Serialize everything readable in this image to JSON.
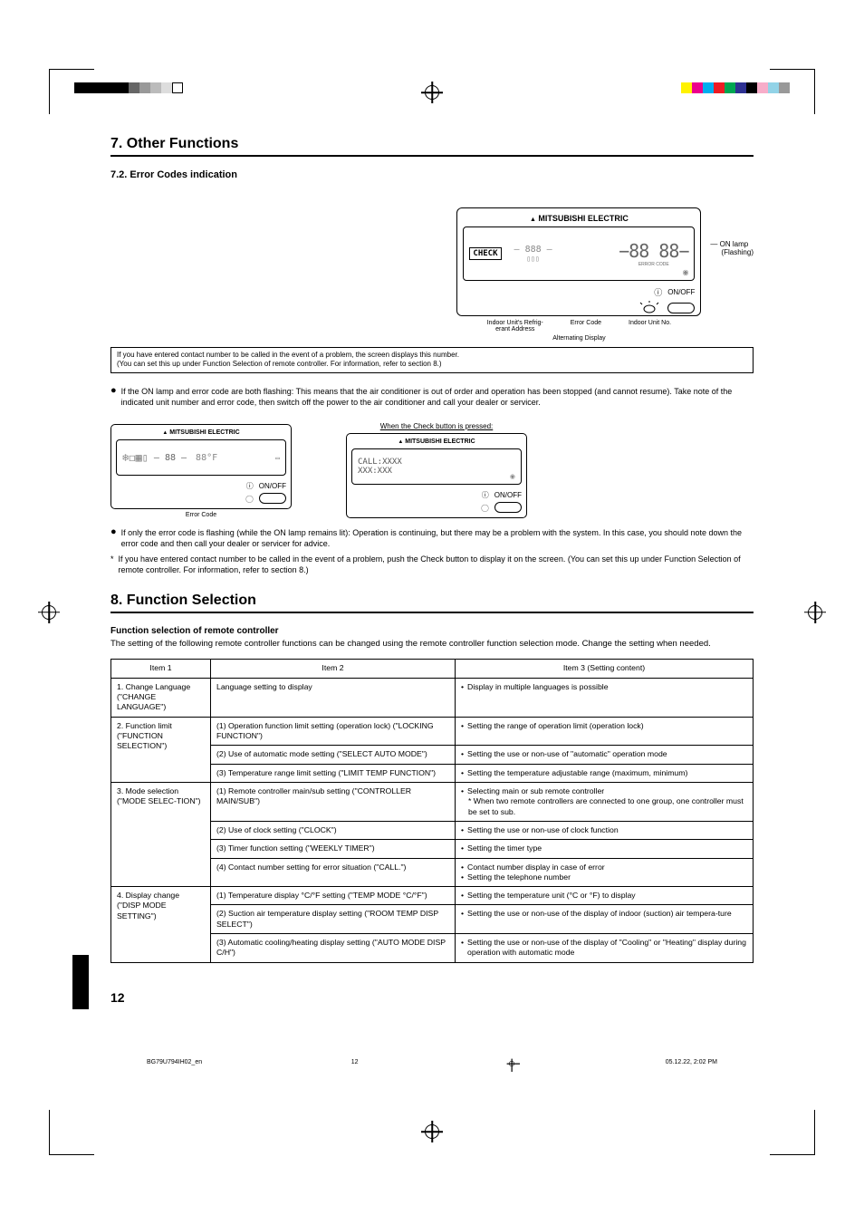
{
  "sections": {
    "s7_title": "7. Other Functions",
    "s7_2": "7.2.  Error Codes indication",
    "s8_title": "8. Function Selection"
  },
  "brand": "MITSUBISHI ELECTRIC",
  "lcd": {
    "check": "CHECK",
    "seg_big": "88 88",
    "seg_small": "888",
    "error_code_label": "ERROR CODE",
    "onoff": "ON/OFF",
    "call": "CALL:XXXX",
    "call2": "XXX:XXX",
    "temp_f": "88°F",
    "temp_set": "88"
  },
  "labels": {
    "refrig": "Indoor Unit's Refrig-\nerant Address",
    "error_code": "Error Code",
    "unit_no": "Indoor Unit No.",
    "alt": "Alternating Display",
    "on_lamp": "ON lamp",
    "flashing": "(Flashing)",
    "when_check": "When the Check button is pressed:"
  },
  "note_box": {
    "l1": "If you have entered contact number to be called in the event of a problem, the screen displays this number.",
    "l2": "(You can set this up under Function Selection of remote controller. For information, refer to section 8.)"
  },
  "bullets": {
    "b1": "If the ON lamp and error code are both flashing: This means that the air conditioner is out of order and operation has been stopped (and cannot resume). Take note of the indicated unit number and error code, then switch off the power to the air conditioner and call your dealer or servicer.",
    "b2": "If only the error code is flashing (while the ON lamp remains lit): Operation is continuing, but there may be a problem with the system. In this case, you should note down the error code and then call your dealer or servicer for advice.",
    "b3": "If you have entered contact number to be called in the event of a problem, push the Check button to display it on the screen. (You can set this up under Function Selection of remote controller. For information, refer to section 8.)"
  },
  "func_intro": {
    "bold": "Function selection of remote controller",
    "text": "The setting of the following remote controller functions can be changed using the remote controller function selection mode. Change the setting when needed."
  },
  "table": {
    "headers": {
      "h1": "Item 1",
      "h2": "Item 2",
      "h3": "Item 3 (Setting content)"
    },
    "r1": {
      "c1": "1. Change Language (\"CHANGE LANGUAGE\")",
      "c2": "Language setting to display",
      "c3": "Display in multiple languages is possible"
    },
    "r2": {
      "c1": "2. Function limit (\"FUNCTION SELECTION\")",
      "c2a": "(1) Operation function limit setting (operation lock) (\"LOCKING FUNCTION\")",
      "c3a": "Setting the range of operation limit (operation lock)",
      "c2b": "(2) Use of automatic mode setting (\"SELECT AUTO MODE\")",
      "c3b": "Setting the use or non-use of \"automatic\" operation mode",
      "c2c": "(3) Temperature range limit setting (\"LIMIT TEMP FUNCTION\")",
      "c3c": "Setting the temperature adjustable range (maximum, minimum)"
    },
    "r3": {
      "c1": "3. Mode selection (\"MODE SELEC-TION\")",
      "c2a": "(1) Remote controller main/sub setting (\"CONTROLLER MAIN/SUB\")",
      "c3a1": "Selecting main or sub remote controller",
      "c3a2": "* When two remote controllers are connected to one group, one controller must be set to sub.",
      "c2b": "(2) Use of clock setting (\"CLOCK\")",
      "c3b": "Setting the use or non-use of clock function",
      "c2c": "(3) Timer function setting (\"WEEKLY TIMER\")",
      "c3c": "Setting the timer type",
      "c2d": "(4) Contact number setting for error situation (\"CALL.\")",
      "c3d1": "Contact number display in case of error",
      "c3d2": "Setting the telephone number"
    },
    "r4": {
      "c1": "4. Display change (\"DISP MODE SETTING\")",
      "c2a": "(1) Temperature display °C/°F setting (\"TEMP MODE °C/°F\")",
      "c3a": "Setting the temperature unit (°C or °F) to display",
      "c2b": "(2) Suction air temperature display setting (\"ROOM TEMP DISP SELECT\")",
      "c3b": "Setting the use or non-use of the display of indoor (suction) air tempera-ture",
      "c2c": "(3) Automatic cooling/heating display setting (\"AUTO MODE DISP C/H\")",
      "c3c": "Setting the use or non-use of the display of \"Cooling\" or \"Heating\" display during operation with automatic mode"
    }
  },
  "footer": {
    "file": "BG79U794IH02_en",
    "pg": "12",
    "timestamp": "05.12.22, 2:02 PM"
  },
  "page_num": "12",
  "color_bars": {
    "left": [
      "#000",
      "#000",
      "#000",
      "#000",
      "#000",
      "#666",
      "#999",
      "#bbb",
      "#ddd",
      "#fff"
    ],
    "right": [
      "#fff200",
      "#ec008c",
      "#00aeef",
      "#ed1c24",
      "#00a651",
      "#2e3192",
      "#000",
      "#f7adc9",
      "#92d3e7",
      "#999"
    ]
  }
}
